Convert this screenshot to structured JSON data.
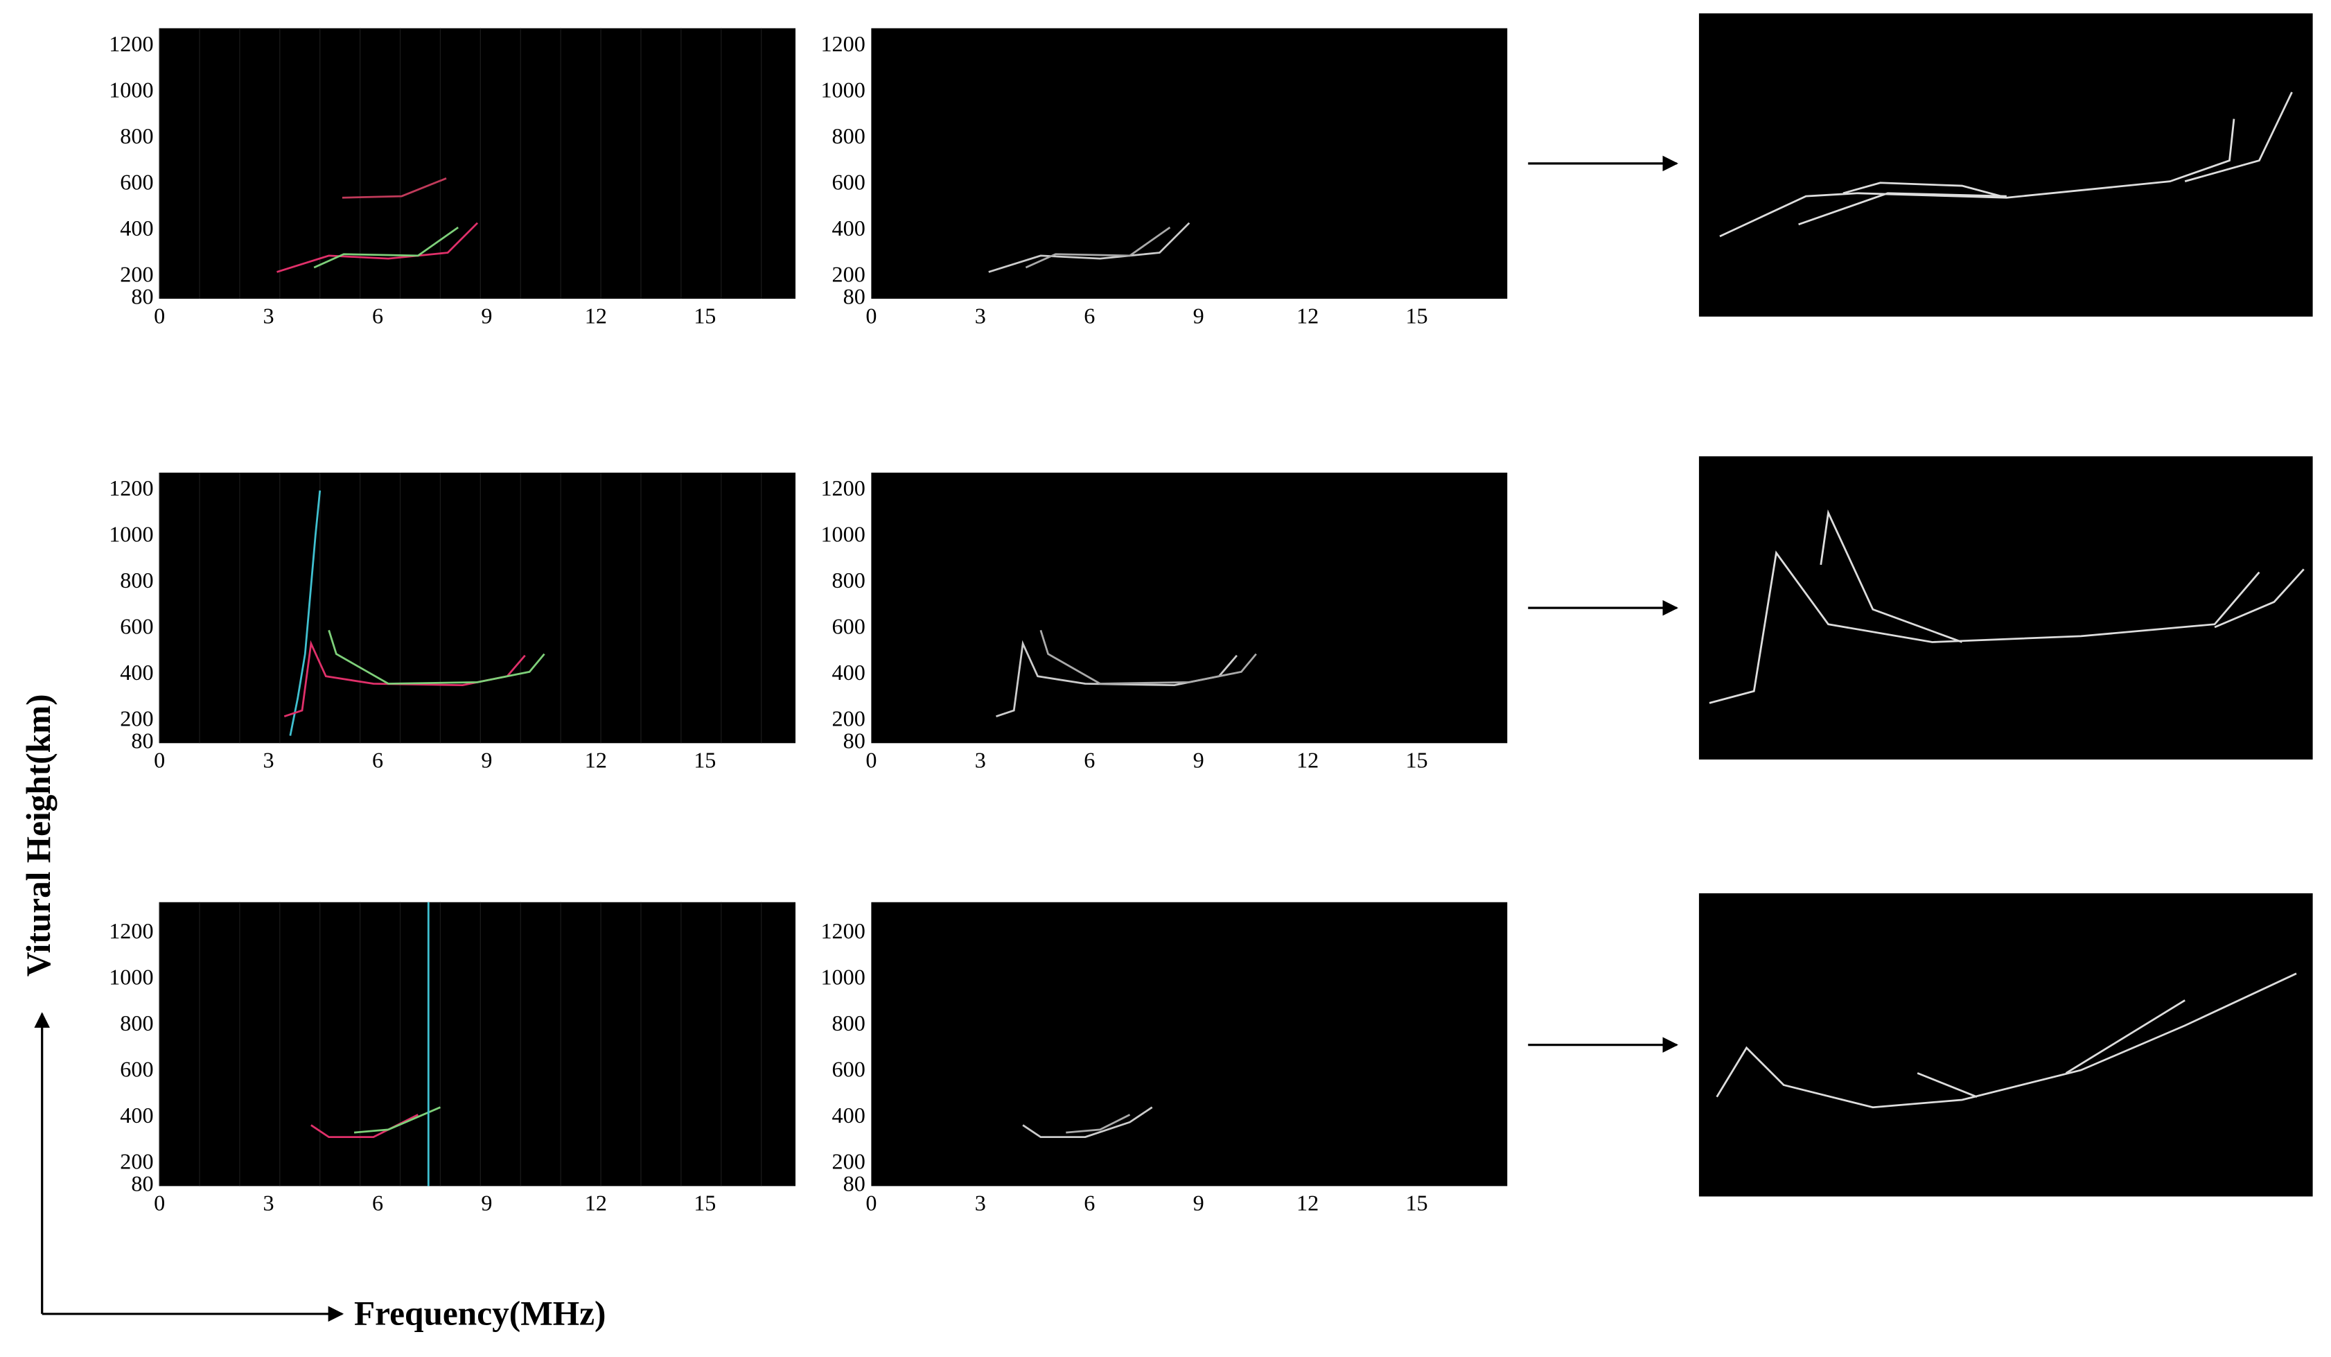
{
  "figure": {
    "y_label": "Vitural Height(km)",
    "x_label": "Frequency(MHz)",
    "rows": [
      {
        "input": {
          "yticks": [
            80,
            200,
            400,
            600,
            800,
            1000,
            1200
          ],
          "xticks": [
            0,
            3,
            6,
            9,
            12,
            15
          ]
        },
        "output": {
          "yticks": [
            80,
            200,
            400,
            600,
            800,
            1000,
            1200
          ],
          "xticks": [
            0,
            3,
            6,
            9,
            12,
            15
          ]
        }
      },
      {
        "input": {
          "yticks": [
            80,
            200,
            400,
            600,
            800,
            1000,
            1200
          ],
          "xticks": [
            0,
            3,
            6,
            9,
            12,
            15
          ]
        },
        "output": {
          "yticks": [
            80,
            200,
            400,
            600,
            800,
            1000,
            1200
          ],
          "xticks": [
            0,
            3,
            6,
            9,
            12,
            15
          ]
        }
      },
      {
        "input": {
          "yticks": [
            80,
            200,
            400,
            600,
            800,
            1000,
            1200
          ],
          "xticks": [
            0,
            3,
            6,
            9,
            12,
            15
          ]
        },
        "output": {
          "yticks": [
            80,
            200,
            400,
            600,
            800,
            1000,
            1200
          ],
          "xticks": [
            0,
            3,
            6,
            9,
            12,
            15
          ]
        }
      }
    ]
  }
}
